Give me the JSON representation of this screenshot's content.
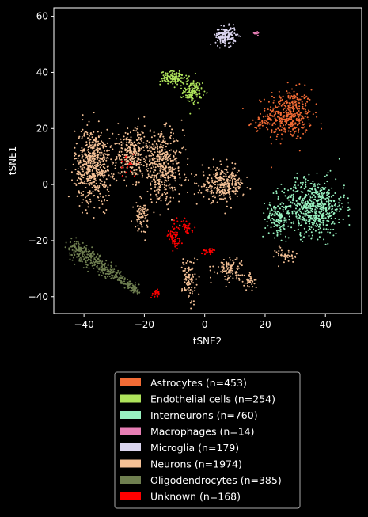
{
  "chart_data": {
    "type": "scatter",
    "xlabel": "tSNE2",
    "ylabel": "tSNE1",
    "xlim": [
      -50,
      52
    ],
    "ylim": [
      -46,
      63
    ],
    "xticks": [
      -40,
      -20,
      0,
      20,
      40
    ],
    "yticks": [
      -40,
      -20,
      0,
      20,
      40,
      60
    ],
    "grid": false,
    "legend_position": "below",
    "background": "#000000",
    "series": [
      {
        "name": "Astrocytes (n=453)",
        "color": "#f26b35",
        "n": 453,
        "clusters": [
          {
            "cx": 28,
            "cy": 25,
            "sx": 3.8,
            "sy": 4.5,
            "w": 0.9
          },
          {
            "cx": 19,
            "cy": 22,
            "sx": 1.8,
            "sy": 1.2,
            "w": 0.1
          }
        ]
      },
      {
        "name": "Endothelial cells (n=254)",
        "color": "#aee35b",
        "n": 254,
        "clusters": [
          {
            "cx": -10,
            "cy": 38,
            "sx": 2.3,
            "sy": 1.2,
            "w": 0.5
          },
          {
            "cx": -4,
            "cy": 33,
            "sx": 1.6,
            "sy": 2.0,
            "w": 0.5
          }
        ]
      },
      {
        "name": "Interneurons (n=760)",
        "color": "#98f2c0",
        "n": 760,
        "clusters": [
          {
            "cx": 36,
            "cy": -8,
            "sx": 5.2,
            "sy": 5.0,
            "w": 0.85
          },
          {
            "cx": 24,
            "cy": -12,
            "sx": 2.0,
            "sy": 3.0,
            "w": 0.15
          }
        ]
      },
      {
        "name": "Macrophages (n=14)",
        "color": "#e87fb6",
        "n": 14,
        "clusters": [
          {
            "cx": 17,
            "cy": 54,
            "sx": 0.3,
            "sy": 0.3,
            "w": 1
          }
        ]
      },
      {
        "name": "Microglia (n=179)",
        "color": "#dcd6f0",
        "n": 179,
        "clusters": [
          {
            "cx": 7,
            "cy": 53,
            "sx": 1.7,
            "sy": 1.6,
            "w": 1
          }
        ]
      },
      {
        "name": "Neurons (n=1974)",
        "color": "#f5c196",
        "n": 1974,
        "clusters": [
          {
            "cx": -37,
            "cy": 7,
            "sx": 3.0,
            "sy": 6.5,
            "w": 0.3
          },
          {
            "cx": -24,
            "cy": 11,
            "sx": 3.0,
            "sy": 4.5,
            "w": 0.15
          },
          {
            "cx": -14,
            "cy": 6,
            "sx": 3.5,
            "sy": 6.0,
            "w": 0.22
          },
          {
            "cx": 6,
            "cy": 0,
            "sx": 3.5,
            "sy": 3.0,
            "w": 0.15
          },
          {
            "cx": -21,
            "cy": -11,
            "sx": 1.2,
            "sy": 2.5,
            "w": 0.04
          },
          {
            "cx": 8,
            "cy": -30,
            "sx": 2.5,
            "sy": 2.0,
            "w": 0.05
          },
          {
            "cx": -5,
            "cy": -34,
            "sx": 1.2,
            "sy": 4.5,
            "w": 0.05
          },
          {
            "cx": 15,
            "cy": -35,
            "sx": 1.0,
            "sy": 1.5,
            "w": 0.02
          },
          {
            "cx": 27,
            "cy": -25,
            "sx": 1.8,
            "sy": 1.5,
            "w": 0.02
          }
        ]
      },
      {
        "name": "Oligodendrocytes (n=385)",
        "color": "#6f7f50",
        "n": 385,
        "clusters": [
          {
            "type": "line",
            "x0": -44,
            "y0": -22,
            "x1": -22,
            "y1": -38,
            "spread": 1.8,
            "w": 1
          }
        ]
      },
      {
        "name": "Unknown (n=168)",
        "color": "#ff0000",
        "n": 168,
        "clusters": [
          {
            "cx": -10,
            "cy": -18,
            "sx": 1.2,
            "sy": 2.5,
            "w": 0.4
          },
          {
            "cx": -6,
            "cy": -15,
            "sx": 1.0,
            "sy": 1.5,
            "w": 0.2
          },
          {
            "cx": -16,
            "cy": -39,
            "sx": 0.8,
            "sy": 0.8,
            "w": 0.15
          },
          {
            "cx": 1,
            "cy": -24,
            "sx": 1.0,
            "sy": 0.7,
            "w": 0.15
          },
          {
            "cx": -25,
            "cy": 7,
            "sx": 2.0,
            "sy": 2.0,
            "w": 0.1
          }
        ]
      }
    ]
  }
}
